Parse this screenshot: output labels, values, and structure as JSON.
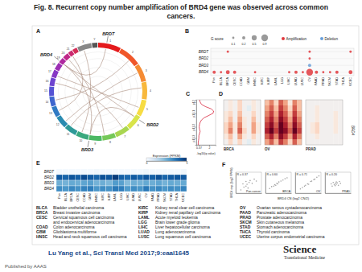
{
  "title": [
    "Fig. 8. Recurrent copy number amplification of BRD4 gene was observed across common",
    "cancers."
  ],
  "chart_data": [
    {
      "type": "circos",
      "panel": "A",
      "categories": [
        "1",
        "2",
        "3",
        "4",
        "5",
        "6",
        "7",
        "8",
        "9",
        "10",
        "11",
        "12",
        "13",
        "14",
        "15",
        "16",
        "17",
        "18",
        "19",
        "20",
        "21",
        "22",
        "X",
        "Y"
      ],
      "values": [
        249,
        243,
        198,
        191,
        181,
        171,
        159,
        146,
        141,
        136,
        135,
        133,
        115,
        107,
        102,
        90,
        83,
        78,
        59,
        63,
        48,
        51,
        155,
        59
      ],
      "colors": [
        "#e41a1c",
        "#f0572a",
        "#f58b33",
        "#f8b83c",
        "#f7dc43",
        "#d9e44a",
        "#a9d651",
        "#75c858",
        "#4bb863",
        "#3aa97e",
        "#2f9a98",
        "#2a8bb0",
        "#2f7ac4",
        "#3f67cf",
        "#5553d4",
        "#6d43cf",
        "#8637c4",
        "#9c2fb4",
        "#af2aa0",
        "#bf2889",
        "#cb2a71",
        "#d42e58",
        "#888888",
        "#555555"
      ],
      "genes": [
        {
          "label": "BRDT",
          "chrom": "1",
          "position": 92
        },
        {
          "label": "BRD2",
          "chrom": "6",
          "position": 33
        },
        {
          "label": "BRD3",
          "chrom": "9",
          "position": 137
        },
        {
          "label": "BRD4",
          "chrom": "19",
          "position": 15
        }
      ],
      "links": [
        [
          "19",
          15,
          "6",
          33
        ],
        [
          "19",
          15,
          "9",
          137
        ],
        [
          "19",
          15,
          "1",
          92
        ],
        [
          "6",
          33,
          "9",
          137
        ],
        [
          "3",
          80,
          "12",
          40
        ],
        [
          "5",
          100,
          "17",
          30
        ],
        [
          "2",
          150,
          "14",
          60
        ],
        [
          "8",
          120,
          "20",
          30
        ],
        [
          "4",
          60,
          "11",
          100
        ],
        [
          "7",
          50,
          "16",
          40
        ],
        [
          "10",
          90,
          "X",
          60
        ],
        [
          "13",
          50,
          "21",
          20
        ]
      ],
      "color": "#a88a7a"
    },
    {
      "type": "dot_matrix",
      "panel": "B",
      "categories": [
        "Pan",
        "BLCA",
        "BRCA",
        "CESC",
        "COAD",
        "GBM",
        "HNSC",
        "KIRC",
        "KIRP",
        "LAML",
        "LGG",
        "LIHC",
        "LUAD",
        "LUSC",
        "OV",
        "PAAD",
        "PRAD",
        "SKCM",
        "STAD",
        "THCA",
        "UCEC"
      ],
      "rows": [
        "BRDT",
        "BRD2",
        "BRD3",
        "BRD4"
      ],
      "series": [
        {
          "name": "Amplification",
          "color": "#e0393e",
          "values": [
            [
              null,
              null,
              0.1,
              null,
              null,
              null,
              null,
              null,
              null,
              null,
              null,
              null,
              null,
              null,
              0.1,
              null,
              null,
              null,
              null,
              null,
              0.1
            ],
            [
              null,
              null,
              null,
              null,
              null,
              null,
              null,
              null,
              null,
              null,
              null,
              null,
              null,
              null,
              0.1,
              null,
              null,
              null,
              null,
              null,
              null
            ],
            [
              null,
              null,
              null,
              null,
              null,
              null,
              null,
              null,
              null,
              null,
              null,
              null,
              null,
              null,
              null,
              null,
              null,
              null,
              null,
              null,
              null
            ],
            [
              0.2,
              0.1,
              0.3,
              0.2,
              null,
              null,
              0.1,
              null,
              null,
              null,
              null,
              0.1,
              0.2,
              0.1,
              0.9,
              0.2,
              0.1,
              0.1,
              0.2,
              null,
              0.3
            ]
          ]
        },
        {
          "name": "Deletion",
          "color": "#6a9fd8",
          "values": [
            [
              null,
              null,
              null,
              null,
              null,
              null,
              null,
              null,
              null,
              null,
              null,
              null,
              null,
              null,
              null,
              null,
              null,
              null,
              null,
              null,
              null
            ],
            [
              null,
              null,
              null,
              null,
              null,
              null,
              null,
              null,
              null,
              null,
              null,
              null,
              null,
              null,
              null,
              null,
              null,
              null,
              null,
              null,
              null
            ],
            [
              null,
              null,
              null,
              null,
              null,
              null,
              null,
              null,
              null,
              null,
              null,
              null,
              null,
              null,
              0.2,
              null,
              null,
              null,
              null,
              null,
              null
            ],
            [
              null,
              null,
              null,
              null,
              null,
              null,
              null,
              null,
              null,
              null,
              null,
              null,
              null,
              null,
              null,
              null,
              null,
              null,
              null,
              null,
              null
            ]
          ]
        }
      ],
      "size_legend": {
        "title": "G score",
        "values": [
          0.1,
          0.2,
          0.5,
          0.9
        ]
      }
    },
    {
      "type": "line",
      "panel": "C",
      "color": "#d7263d",
      "positions": [
        0,
        1,
        2,
        3,
        4,
        5,
        6,
        7,
        8,
        9,
        10,
        11,
        12,
        13,
        14,
        15,
        16,
        17,
        18,
        19,
        20
      ],
      "values": [
        0.3,
        0.3,
        0.35,
        0.4,
        0.4,
        0.5,
        0.6,
        0.5,
        0.45,
        0.5,
        0.6,
        0.8,
        1.2,
        1.9,
        2.6,
        2.7,
        2.3,
        1.4,
        0.8,
        0.6,
        0.5
      ],
      "xlabel": "-log10(q value)",
      "xlim": [
        0,
        3
      ],
      "xticks": [
        0.37,
        2
      ],
      "ylim": [
        0,
        20
      ],
      "yticks": [
        {
          "value": 3,
          "label": "p13.3"
        },
        {
          "value": 8,
          "label": "p13.2"
        },
        {
          "value": 14,
          "label": "p13.1"
        },
        {
          "value": 19,
          "label": "p12"
        }
      ]
    },
    {
      "type": "copy_number_heatmap",
      "panel": "D",
      "categories": [
        "BRCA",
        "OV",
        "PRAD"
      ],
      "annotation": "BRD4",
      "colorlim": [
        -1,
        1
      ],
      "cells": [
        [
          [
            0,
            0.1,
            0,
            0.2,
            0,
            0,
            0.1,
            0
          ],
          [
            0,
            0.1,
            0,
            0.2,
            0,
            -0.1,
            0.1,
            0
          ],
          [
            0.1,
            0.2,
            0,
            0.3,
            0,
            0,
            0.2,
            0
          ],
          [
            0.1,
            0.3,
            0,
            0.4,
            0.1,
            0,
            0.3,
            0
          ],
          [
            0.2,
            0.4,
            0.1,
            0.5,
            0.1,
            0,
            0.4,
            0.1
          ],
          [
            0.2,
            0.5,
            0.1,
            0.6,
            0.2,
            0,
            0.4,
            0.1
          ],
          [
            0.1,
            0.3,
            0,
            0.4,
            0.1,
            0,
            0.2,
            0
          ],
          [
            0,
            0.2,
            0,
            0.2,
            0,
            -0.1,
            0.1,
            0
          ]
        ],
        [
          [
            0.3,
            0.5,
            0.2,
            0.6,
            0.4,
            0.1,
            0.5,
            0.3
          ],
          [
            0.4,
            0.6,
            0.3,
            0.7,
            0.5,
            0.2,
            0.6,
            0.3
          ],
          [
            0.5,
            0.7,
            0.4,
            0.8,
            0.6,
            0.3,
            0.7,
            0.4
          ],
          [
            0.6,
            0.8,
            0.5,
            0.9,
            0.7,
            0.4,
            0.8,
            0.5
          ],
          [
            0.7,
            0.9,
            0.6,
            1,
            0.8,
            0.5,
            0.9,
            0.6
          ],
          [
            0.8,
            1,
            0.7,
            1,
            0.9,
            0.6,
            1,
            0.7
          ],
          [
            0.6,
            0.8,
            0.5,
            0.9,
            0.7,
            0.4,
            0.8,
            0.5
          ],
          [
            0.4,
            0.6,
            0.3,
            0.7,
            0.5,
            0.2,
            0.6,
            0.3
          ]
        ],
        [
          [
            0,
            0,
            0,
            0,
            0,
            0,
            0,
            0
          ],
          [
            0,
            0,
            0.1,
            0,
            0,
            0,
            0,
            0
          ],
          [
            0,
            0,
            0.1,
            0,
            0,
            0,
            0.1,
            0
          ],
          [
            0,
            0,
            0.1,
            0,
            0,
            0,
            0.1,
            0
          ],
          [
            0,
            0.1,
            0.2,
            0,
            0,
            0,
            0.1,
            0
          ],
          [
            0,
            0.1,
            0.2,
            0,
            0,
            0,
            0.1,
            0
          ],
          [
            0,
            0,
            0.1,
            0,
            0,
            0,
            0,
            0
          ],
          [
            0,
            0,
            0,
            0,
            0,
            0,
            0,
            0
          ]
        ]
      ]
    },
    {
      "type": "heatmap",
      "panel": "E",
      "categories": [
        "Pan",
        "BLCA",
        "BRCA",
        "CESC",
        "COAD",
        "GBM",
        "HNSC",
        "KIRC",
        "KIRP",
        "LAML",
        "LGG",
        "LIHC",
        "LUAD",
        "LUSC",
        "OV",
        "PAAD",
        "PRAD",
        "SKCM",
        "STAD",
        "THCA",
        "UCEC"
      ],
      "rows": [
        "BRDT",
        "BRD2",
        "BRD3",
        "BRD4"
      ],
      "cells": [
        [
          0.1,
          0.1,
          0.1,
          0.1,
          0.1,
          0.1,
          0.2,
          0.1,
          0.1,
          0.1,
          0.1,
          0.1,
          0.1,
          0.1,
          0.2,
          0.1,
          0.1,
          0.1,
          0.1,
          0.1,
          0.2
        ],
        [
          4.2,
          4.0,
          4.3,
          4.1,
          4.5,
          4.2,
          4.0,
          4.4,
          4.3,
          4.8,
          4.1,
          3.9,
          4.2,
          4.0,
          4.3,
          4.1,
          4.4,
          4.0,
          4.2,
          4.3,
          4.2
        ],
        [
          2.5,
          2.4,
          2.6,
          2.5,
          2.7,
          2.8,
          2.4,
          2.5,
          2.3,
          2.9,
          2.8,
          2.2,
          2.5,
          2.4,
          2.6,
          2.5,
          2.7,
          2.4,
          2.6,
          2.5,
          2.6
        ],
        [
          3.2,
          3.0,
          3.3,
          3.1,
          3.4,
          3.5,
          3.0,
          3.2,
          3.1,
          3.6,
          3.5,
          2.9,
          3.2,
          3.0,
          3.6,
          3.1,
          3.3,
          3.0,
          3.2,
          3.1,
          3.4
        ]
      ],
      "colorbar": {
        "title": "Expression (FPKM)",
        "lim": [
          0,
          5
        ],
        "ticks": [
          0,
          5
        ]
      }
    },
    {
      "type": "scatter",
      "panel": "F",
      "color": "#8c8c8c",
      "tick_labels": false,
      "xlabel": "BRD4 CN (log2 CN/2)",
      "ylabel": "BRD4 exp. (log2 FPKM)",
      "xlim": [
        -1,
        1.5
      ],
      "ylim": [
        2.5,
        7
      ],
      "series": [
        {
          "name": "Pan-cancer",
          "annotation": "R = 0.37",
          "x": [
            -0.5,
            -0.3,
            -0.2,
            0,
            0,
            0.1,
            0.2,
            0.3,
            0.4,
            0.6,
            0.8,
            1.0
          ],
          "values": [
            3.2,
            4.5,
            3.8,
            4.0,
            5.0,
            4.4,
            3.6,
            4.8,
            5.2,
            4.6,
            5.5,
            5.1
          ]
        },
        {
          "name": "BRCA",
          "annotation": "R = 0.60",
          "x": [
            -0.6,
            -0.4,
            -0.2,
            -0.1,
            0,
            0.1,
            0.2,
            0.3,
            0.5,
            0.7,
            0.9,
            1.1
          ],
          "values": [
            3.5,
            3.9,
            4.0,
            4.3,
            4.2,
            4.6,
            4.5,
            4.9,
            5.1,
            5.3,
            5.6,
            5.8
          ]
        },
        {
          "name": "OV",
          "annotation": "R = 0.71",
          "x": [
            -0.5,
            -0.3,
            -0.1,
            0,
            0.2,
            0.3,
            0.5,
            0.6,
            0.8,
            0.9,
            1.1,
            1.3
          ],
          "values": [
            3.4,
            3.7,
            4.0,
            4.2,
            4.5,
            4.4,
            5.0,
            5.1,
            5.4,
            5.5,
            5.9,
            6.2
          ]
        },
        {
          "name": "PRAD",
          "annotation": "R = 0.20",
          "x": [
            -0.4,
            -0.3,
            -0.2,
            -0.1,
            0,
            0,
            0.1,
            0.1,
            0.2,
            0.3,
            0.4,
            0.5
          ],
          "values": [
            4.5,
            4.0,
            4.8,
            4.3,
            4.6,
            4.1,
            4.9,
            4.4,
            4.7,
            4.2,
            5.0,
            4.6
          ]
        }
      ]
    }
  ],
  "abbreviations": [
    [
      [
        "BLCA",
        "Bladder urothelial carcinoma"
      ],
      [
        "BRCA",
        "Breast invasive carcinoma"
      ],
      [
        "CESC",
        [
          "Cervical squamous cell carcinoma",
          "and endocervical adenocarcinoma"
        ]
      ],
      [
        "COAD",
        "Colon adenocarcinoma"
      ],
      [
        "GBM",
        "Glioblastoma multiforme"
      ],
      [
        "HNSC",
        "Head and neck squamous cell carcinoma"
      ]
    ],
    [
      [
        "KIRC",
        "Kidney renal clear cell carcinoma"
      ],
      [
        "KIRP",
        "Kidney renal papillary cell carcinoma"
      ],
      [
        "LAML",
        "Acute myeloid leukemia"
      ],
      [
        "LGG",
        "Brain lower grade glioma"
      ],
      [
        "LIHC",
        "Liver hepatocellular carcinoma"
      ],
      [
        "LUAD",
        "Lung adenocarcinoma"
      ],
      [
        "LUSC",
        "Lung squamous cell carcinoma"
      ]
    ],
    [
      [
        "OV",
        "Ovarian serous cystadenocarcinoma"
      ],
      [
        "PAAD",
        "Pancreatic adenocarcinoma"
      ],
      [
        "PRAD",
        "Prostate adenocarcinoma"
      ],
      [
        "SKCM",
        "Skin cutaneous melanoma"
      ],
      [
        "STAD",
        "Stomach adenocarcinoma"
      ],
      [
        "THCA",
        "Thyroid carcinoma"
      ],
      [
        "UCEC",
        "Uterine corpus endometrial carcinoma"
      ]
    ]
  ],
  "citation": "Lu Yang et al., Sci Transl Med 2017;9:eaal1645",
  "logo": [
    "Science",
    "Translational Medicine"
  ],
  "footer": "Published by AAAS"
}
